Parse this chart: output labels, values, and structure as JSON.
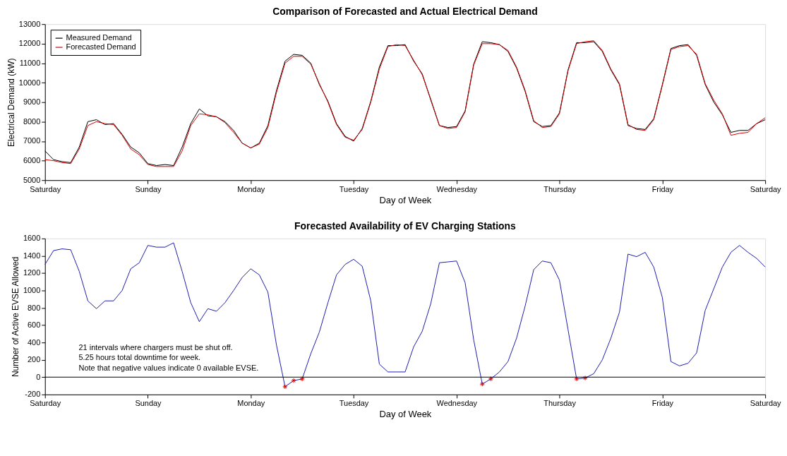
{
  "chart_data": [
    {
      "type": "line",
      "title": "Comparison of Forecasted and Actual Electrical Demand",
      "xlabel": "Day of Week",
      "ylabel": "Electrical Demand (kW)",
      "categories": [
        "Saturday",
        null,
        null,
        null,
        null,
        null,
        null,
        null,
        null,
        null,
        null,
        null,
        "Sunday",
        null,
        null,
        null,
        null,
        null,
        null,
        null,
        null,
        null,
        null,
        null,
        "Monday",
        null,
        null,
        null,
        null,
        null,
        null,
        null,
        null,
        null,
        null,
        null,
        "Tuesday",
        null,
        null,
        null,
        null,
        null,
        null,
        null,
        null,
        null,
        null,
        null,
        "Wednesday",
        null,
        null,
        null,
        null,
        null,
        null,
        null,
        null,
        null,
        null,
        null,
        "Thursday",
        null,
        null,
        null,
        null,
        null,
        null,
        null,
        null,
        null,
        null,
        null,
        "Friday",
        null,
        null,
        null,
        null,
        null,
        null,
        null,
        null,
        null,
        null,
        null,
        "Saturday"
      ],
      "ylim": [
        5000,
        13000
      ],
      "yticks": [
        5000,
        6000,
        7000,
        8000,
        9000,
        10000,
        11000,
        12000,
        13000
      ],
      "legend": "top left",
      "series": [
        {
          "name": "Measured Demand",
          "color": "#000000",
          "values": [
            6500,
            6050,
            5950,
            5900,
            6700,
            8000,
            8100,
            7850,
            7900,
            7350,
            6700,
            6400,
            5850,
            5750,
            5800,
            5750,
            6700,
            7900,
            8650,
            8300,
            8250,
            8000,
            7550,
            6900,
            6650,
            6900,
            7800,
            9600,
            11100,
            11450,
            11400,
            11000,
            9900,
            9050,
            7900,
            7250,
            7000,
            7650,
            9050,
            10800,
            11900,
            11900,
            11950,
            11100,
            10450,
            9100,
            7800,
            7700,
            7750,
            8550,
            10950,
            12100,
            12050,
            11950,
            11600,
            10750,
            9550,
            8000,
            7750,
            7800,
            8450,
            10650,
            12050,
            12050,
            12100,
            11600,
            10650,
            9900,
            7800,
            7650,
            7600,
            8150,
            9900,
            11750,
            11900,
            11950,
            11400,
            9900,
            9000,
            8350,
            7450,
            7550,
            7550,
            7900,
            8100
          ]
        },
        {
          "name": "Forecasted Demand",
          "color": "#d40000",
          "values": [
            6050,
            6000,
            5900,
            5850,
            6600,
            7800,
            8000,
            7900,
            7850,
            7300,
            6600,
            6300,
            5800,
            5700,
            5700,
            5700,
            6500,
            7800,
            8400,
            8350,
            8250,
            7950,
            7450,
            6900,
            6650,
            6850,
            7700,
            9500,
            11000,
            11350,
            11350,
            10950,
            9950,
            9000,
            7850,
            7200,
            7050,
            7600,
            9000,
            10700,
            11850,
            11950,
            11900,
            11150,
            10400,
            9150,
            7800,
            7650,
            7700,
            8500,
            10900,
            12000,
            12000,
            11950,
            11650,
            10800,
            9600,
            8050,
            7700,
            7750,
            8400,
            10600,
            12000,
            12100,
            12150,
            11650,
            10700,
            9950,
            7850,
            7600,
            7550,
            8100,
            9850,
            11700,
            11850,
            11900,
            11450,
            9950,
            9100,
            8400,
            7300,
            7400,
            7450,
            7900,
            8200
          ]
        }
      ]
    },
    {
      "type": "line",
      "title": "Forecasted Availability of EV Charging Stations",
      "xlabel": "Day of Week",
      "ylabel": "Number of Active EVSE Allowed",
      "categories": [
        "Saturday",
        null,
        null,
        null,
        null,
        null,
        null,
        null,
        null,
        null,
        null,
        null,
        "Sunday",
        null,
        null,
        null,
        null,
        null,
        null,
        null,
        null,
        null,
        null,
        null,
        "Monday",
        null,
        null,
        null,
        null,
        null,
        null,
        null,
        null,
        null,
        null,
        null,
        "Tuesday",
        null,
        null,
        null,
        null,
        null,
        null,
        null,
        null,
        null,
        null,
        null,
        "Wednesday",
        null,
        null,
        null,
        null,
        null,
        null,
        null,
        null,
        null,
        null,
        null,
        "Thursday",
        null,
        null,
        null,
        null,
        null,
        null,
        null,
        null,
        null,
        null,
        null,
        "Friday",
        null,
        null,
        null,
        null,
        null,
        null,
        null,
        null,
        null,
        null,
        null,
        "Saturday"
      ],
      "ylim": [
        -200,
        1600
      ],
      "yticks": [
        -200,
        0,
        200,
        400,
        600,
        800,
        1000,
        1200,
        1400,
        1600
      ],
      "series": [
        {
          "color": "#1c1cb0",
          "values": [
            1300,
            1460,
            1480,
            1470,
            1220,
            880,
            790,
            880,
            880,
            1000,
            1250,
            1320,
            1520,
            1500,
            1500,
            1550,
            1220,
            860,
            640,
            790,
            760,
            860,
            1000,
            1150,
            1250,
            1180,
            980,
            370,
            -110,
            -40,
            -20,
            270,
            520,
            860,
            1180,
            1300,
            1360,
            1280,
            880,
            150,
            60,
            60,
            60,
            350,
            530,
            850,
            1320,
            1330,
            1340,
            1090,
            430,
            -80,
            -20,
            60,
            180,
            450,
            820,
            1240,
            1340,
            1320,
            1120,
            550,
            -20,
            -10,
            40,
            200,
            450,
            750,
            1420,
            1390,
            1440,
            1270,
            920,
            180,
            130,
            160,
            280,
            770,
            1020,
            1270,
            1440,
            1520,
            1440,
            1370,
            1270
          ]
        },
        {
          "type": "scatter",
          "marker": "cross",
          "color": "#e00000",
          "values": [
            null,
            null,
            null,
            null,
            null,
            null,
            null,
            null,
            null,
            null,
            null,
            null,
            null,
            null,
            null,
            null,
            null,
            null,
            null,
            null,
            null,
            null,
            null,
            null,
            null,
            null,
            null,
            null,
            -110,
            -40,
            -20,
            null,
            null,
            null,
            null,
            null,
            null,
            null,
            null,
            null,
            null,
            null,
            null,
            null,
            null,
            null,
            null,
            null,
            null,
            null,
            null,
            -80,
            -20,
            null,
            null,
            null,
            null,
            null,
            null,
            null,
            null,
            null,
            -20,
            -10,
            null,
            null,
            null,
            null,
            null,
            null,
            null,
            null,
            null,
            null,
            null,
            null,
            null,
            null,
            null,
            null,
            null,
            null,
            null,
            null,
            null
          ]
        }
      ],
      "ref_lines": [
        {
          "axis": "y",
          "value": 0,
          "color": "#000000"
        }
      ],
      "annotations": [
        "21 intervals where chargers must be shut off.",
        "5.25 hours total downtime for week.",
        "Note that negative values indicate 0 available EVSE."
      ]
    }
  ]
}
